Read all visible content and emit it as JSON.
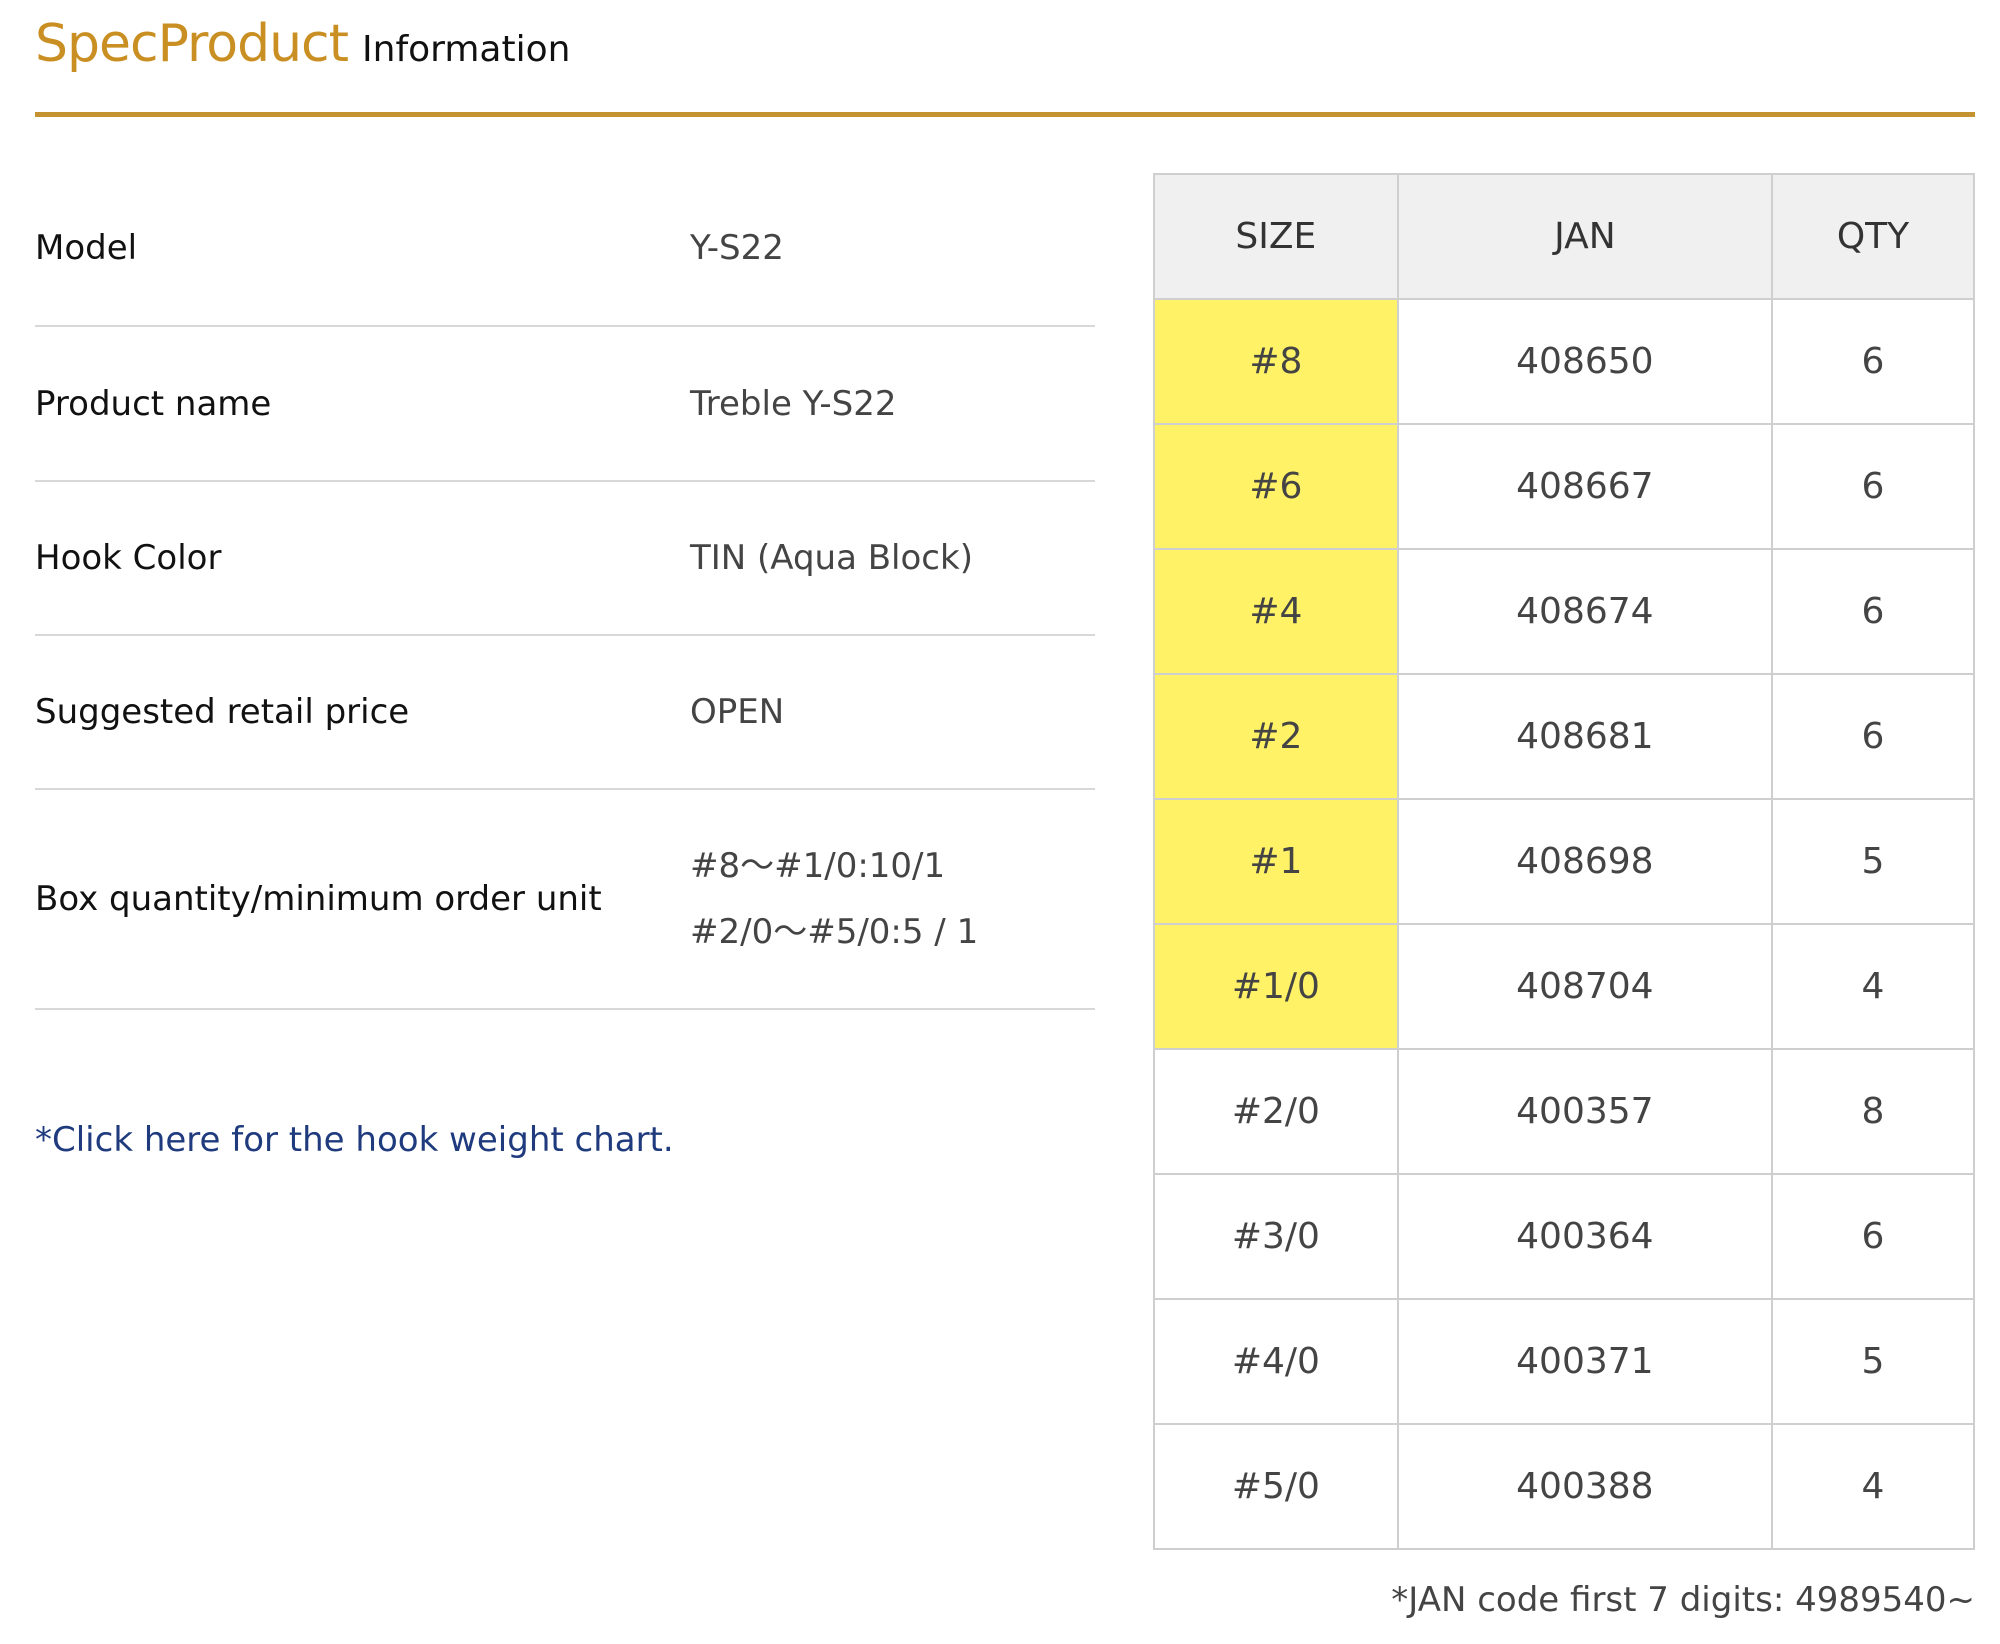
{
  "header": {
    "title_main": "SpecProduct",
    "title_sub": "Information"
  },
  "spec": [
    {
      "label": "Model",
      "value": [
        "Y-S22"
      ]
    },
    {
      "label": "Product name",
      "value": [
        "Treble Y-S22"
      ]
    },
    {
      "label": "Hook Color",
      "value": [
        "TIN (Aqua Block)"
      ]
    },
    {
      "label": "Suggested retail price",
      "value": [
        "OPEN"
      ]
    },
    {
      "label": "Box quantity/minimum order unit",
      "value": [
        "#8〜#1/0:10/1",
        "#2/0〜#5/0:5 / 1"
      ]
    }
  ],
  "link": "*Click here for the hook weight chart.",
  "table": {
    "headers": [
      "SIZE",
      "JAN",
      "QTY"
    ],
    "highlight_color": "#fff266",
    "rows": [
      {
        "size": "#8",
        "jan": "408650",
        "qty": "6",
        "highlight": true
      },
      {
        "size": "#6",
        "jan": "408667",
        "qty": "6",
        "highlight": true
      },
      {
        "size": "#4",
        "jan": "408674",
        "qty": "6",
        "highlight": true
      },
      {
        "size": "#2",
        "jan": "408681",
        "qty": "6",
        "highlight": true
      },
      {
        "size": "#1",
        "jan": "408698",
        "qty": "5",
        "highlight": true
      },
      {
        "size": "#1/0",
        "jan": "408704",
        "qty": "4",
        "highlight": true
      },
      {
        "size": "#2/0",
        "jan": "400357",
        "qty": "8",
        "highlight": false
      },
      {
        "size": "#3/0",
        "jan": "400364",
        "qty": "6",
        "highlight": false
      },
      {
        "size": "#4/0",
        "jan": "400371",
        "qty": "5",
        "highlight": false
      },
      {
        "size": "#5/0",
        "jan": "400388",
        "qty": "4",
        "highlight": false
      }
    ]
  },
  "note": "*JAN code first 7 digits: 4989540~"
}
